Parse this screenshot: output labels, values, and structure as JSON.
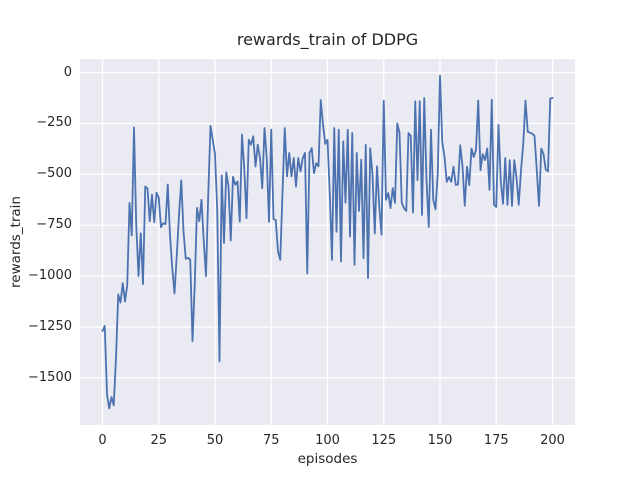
{
  "chart": {
    "title": "rewards_train of DDPG",
    "xlabel": "episodes",
    "ylabel": "rewards_train"
  },
  "chart_data": {
    "type": "line",
    "title": "rewards_train of DDPG",
    "xlabel": "episodes",
    "ylabel": "rewards_train",
    "grid": true,
    "legend": false,
    "background_color": "#eaeaf2",
    "grid_color": "#ffffff",
    "figure_background": "#ffffff",
    "text_color": "#262626",
    "line_color": "#4c72b0",
    "x_ticks": [
      0,
      25,
      50,
      75,
      100,
      125,
      150,
      175,
      200
    ],
    "x_tick_labels": [
      "0",
      "25",
      "50",
      "75",
      "100",
      "125",
      "150",
      "175",
      "200"
    ],
    "y_ticks": [
      0,
      -250,
      -500,
      -750,
      -1000,
      -1250,
      -1500
    ],
    "y_tick_labels": [
      "0",
      "−250",
      "−500",
      "−750",
      "−1000",
      "−1250",
      "−1500"
    ],
    "xlim": [
      -10,
      210
    ],
    "ylim": [
      -1732,
      67
    ],
    "x_start": 0,
    "x_step": 1,
    "series": [
      {
        "name": "rewards_train",
        "values": [
          -1270,
          -1245,
          -1580,
          -1650,
          -1595,
          -1635,
          -1400,
          -1090,
          -1130,
          -1035,
          -1125,
          -1045,
          -640,
          -800,
          -270,
          -750,
          -1000,
          -790,
          -1040,
          -560,
          -570,
          -730,
          -600,
          -735,
          -590,
          -615,
          -760,
          -740,
          -745,
          -550,
          -800,
          -960,
          -1085,
          -900,
          -700,
          -530,
          -780,
          -915,
          -910,
          -920,
          -1320,
          -1040,
          -665,
          -730,
          -625,
          -830,
          -1000,
          -600,
          -262,
          -330,
          -400,
          -680,
          -1420,
          -505,
          -837,
          -490,
          -560,
          -825,
          -512,
          -551,
          -535,
          -733,
          -305,
          -470,
          -715,
          -330,
          -354,
          -313,
          -461,
          -354,
          -420,
          -568,
          -272,
          -420,
          -733,
          -280,
          -720,
          -725,
          -880,
          -920,
          -590,
          -272,
          -510,
          -395,
          -510,
          -420,
          -560,
          -420,
          -486,
          -420,
          -395,
          -987,
          -395,
          -371,
          -494,
          -445,
          -460,
          -135,
          -255,
          -350,
          -330,
          -590,
          -920,
          -272,
          -782,
          -281,
          -928,
          -338,
          -640,
          -281,
          -806,
          -297,
          -944,
          -395,
          -680,
          -428,
          -912,
          -355,
          -1010,
          -372,
          -503,
          -790,
          -460,
          -656,
          -796,
          -138,
          -625,
          -592,
          -666,
          -568,
          -640,
          -250,
          -295,
          -640,
          -666,
          -680,
          -297,
          -310,
          -688,
          -141,
          -528,
          -141,
          -700,
          -125,
          -528,
          -758,
          -281,
          -625,
          -672,
          -495,
          -15,
          -340,
          -415,
          -537,
          -513,
          -537,
          -462,
          -552,
          -550,
          -357,
          -460,
          -654,
          -462,
          -553,
          -373,
          -415,
          -380,
          -138,
          -480,
          -400,
          -430,
          -373,
          -576,
          -133,
          -650,
          -660,
          -257,
          -530,
          -645,
          -420,
          -650,
          -430,
          -655,
          -430,
          -515,
          -650,
          -480,
          -350,
          -138,
          -291,
          -295,
          -300,
          -310,
          -477,
          -655,
          -373,
          -400,
          -477,
          -485,
          -127,
          -125
        ]
      }
    ]
  }
}
